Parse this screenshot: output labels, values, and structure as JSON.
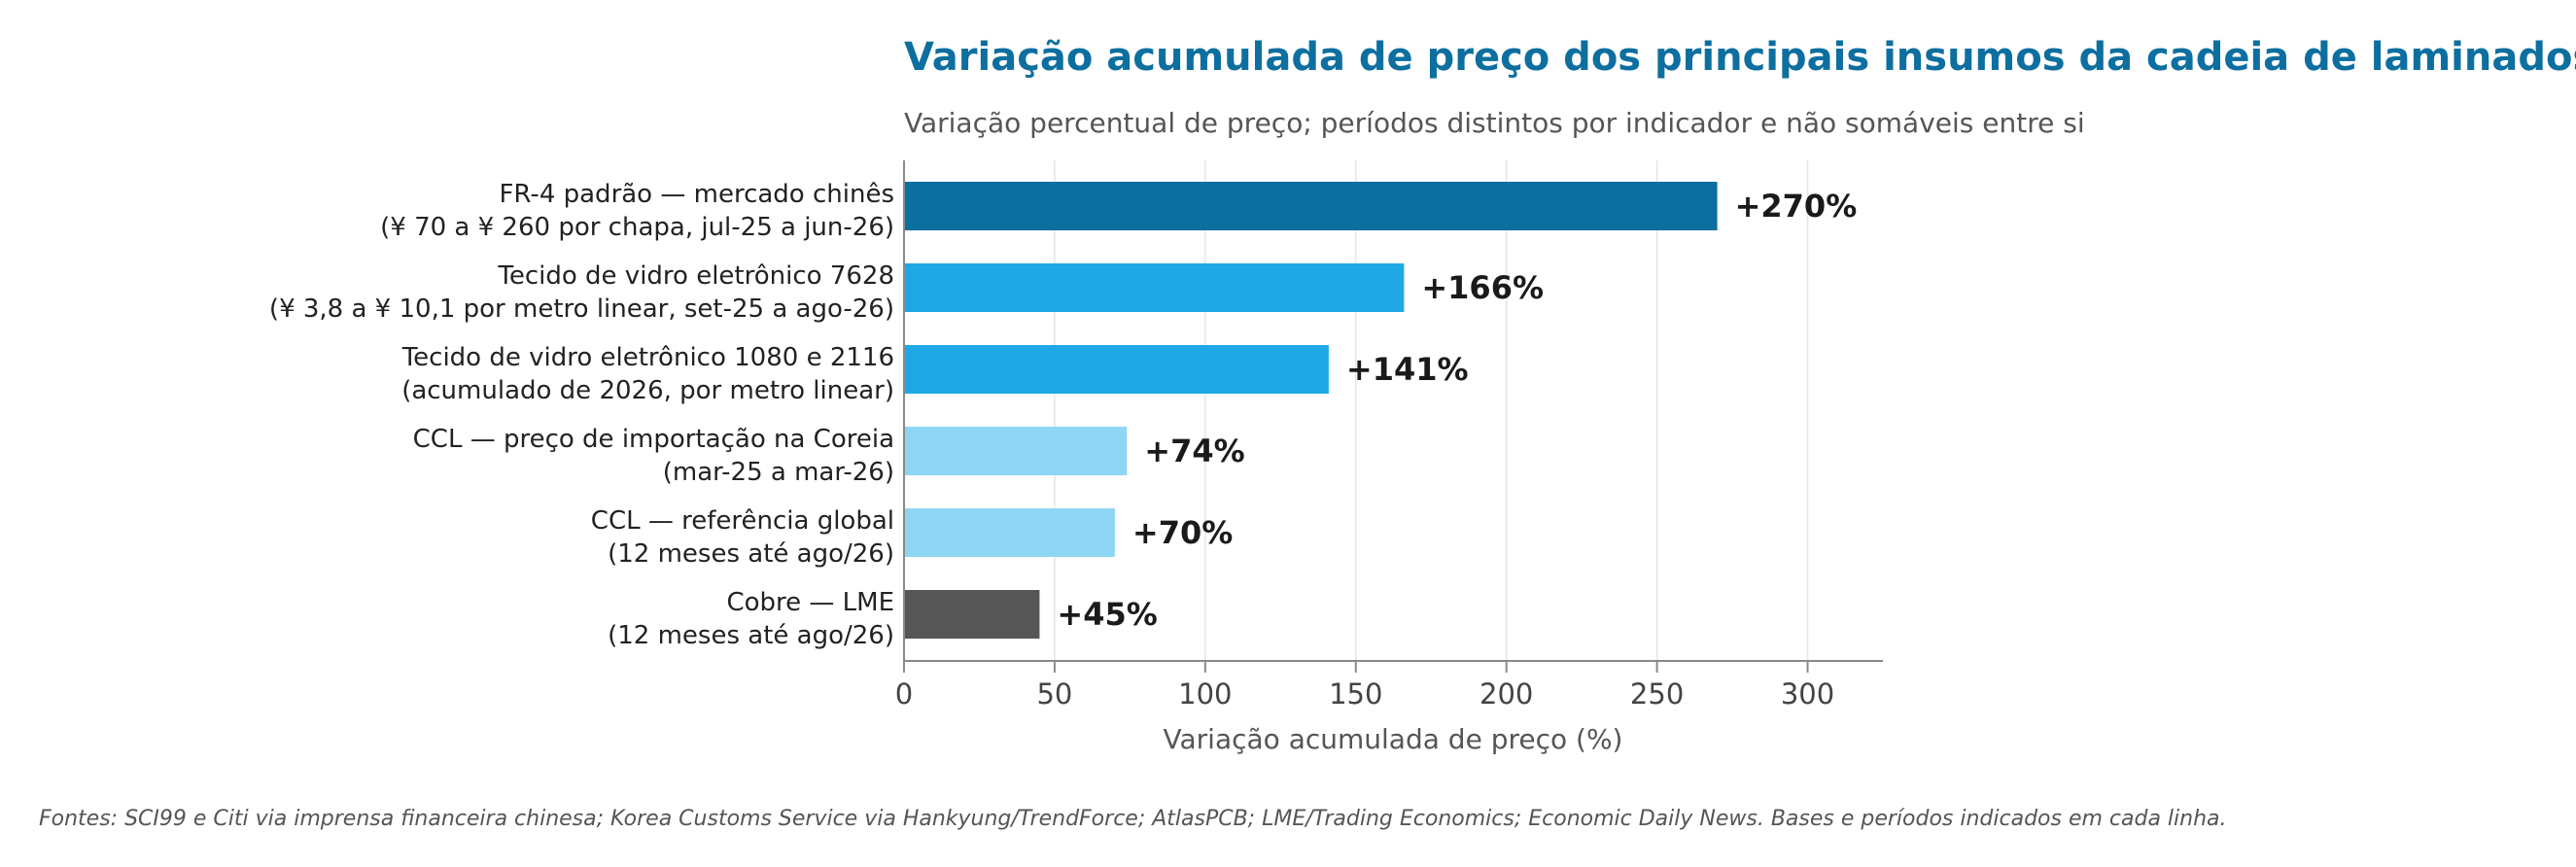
{
  "chart_data": {
    "type": "bar",
    "orientation": "horizontal",
    "title": "Variação acumulada de preço dos principais insumos da cadeia de laminados",
    "subtitle": "Variação percentual de preço; períodos distintos por indicador e não somáveis entre si",
    "xlabel": "Variação acumulada de preço (%)",
    "ylabel": "",
    "xlim": [
      0,
      325
    ],
    "xticks": [
      0,
      50,
      100,
      150,
      200,
      250,
      300
    ],
    "grid": "vertical",
    "categories": [
      [
        "FR-4 padrão — mercado chinês",
        "(¥ 70 a ¥ 260 por chapa, jul-25 a jun-26)"
      ],
      [
        "Tecido de vidro eletrônico 7628",
        "(¥ 3,8 a ¥ 10,1 por metro linear, set-25 a ago-26)"
      ],
      [
        "Tecido de vidro eletrônico 1080 e 2116",
        "(acumulado de 2026, por metro linear)"
      ],
      [
        "CCL — preço de importação na Coreia",
        "(mar-25 a mar-26)"
      ],
      [
        "CCL — referência global",
        "(12 meses até ago/26)"
      ],
      [
        "Cobre — LME",
        "(12 meses até ago/26)"
      ]
    ],
    "values": [
      270,
      166,
      141,
      74,
      70,
      45
    ],
    "value_labels": [
      "+270%",
      "+166%",
      "+141%",
      "+74%",
      "+70%",
      "+45%"
    ],
    "colors": [
      "#0b6fa0",
      "#1fa7e6",
      "#1fa7e6",
      "#8fd6f4",
      "#8fd6f4",
      "#565656"
    ]
  },
  "source_note": "Fontes: SCI99 e Citi via imprensa financeira chinesa; Korea Customs Service via Hankyung/TrendForce; AtlasPCB; LME/Trading Economics; Economic Daily News. Bases e períodos indicados em cada linha."
}
